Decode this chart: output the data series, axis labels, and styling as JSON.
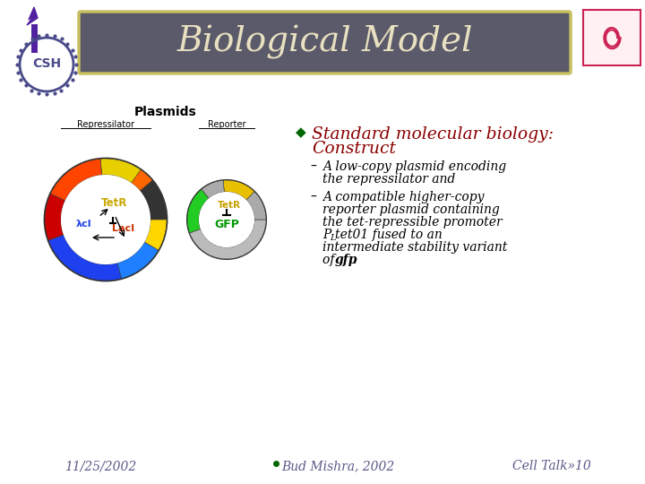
{
  "title": "Biological Model",
  "title_color": "#E8E0C0",
  "title_bg_color": "#5A5A6A",
  "title_border_color": "#C8C060",
  "bg_color": "#FFFFFF",
  "bullet_char": "◆",
  "bullet1_color": "#8B0000",
  "date_text": "11/25/2002",
  "credit_text": "Bud Mishra, 2002",
  "celltalk_text": "Cell Talk»10",
  "footer_color": "#5A5A8A",
  "csh_circle_color": "#4A4A8A"
}
